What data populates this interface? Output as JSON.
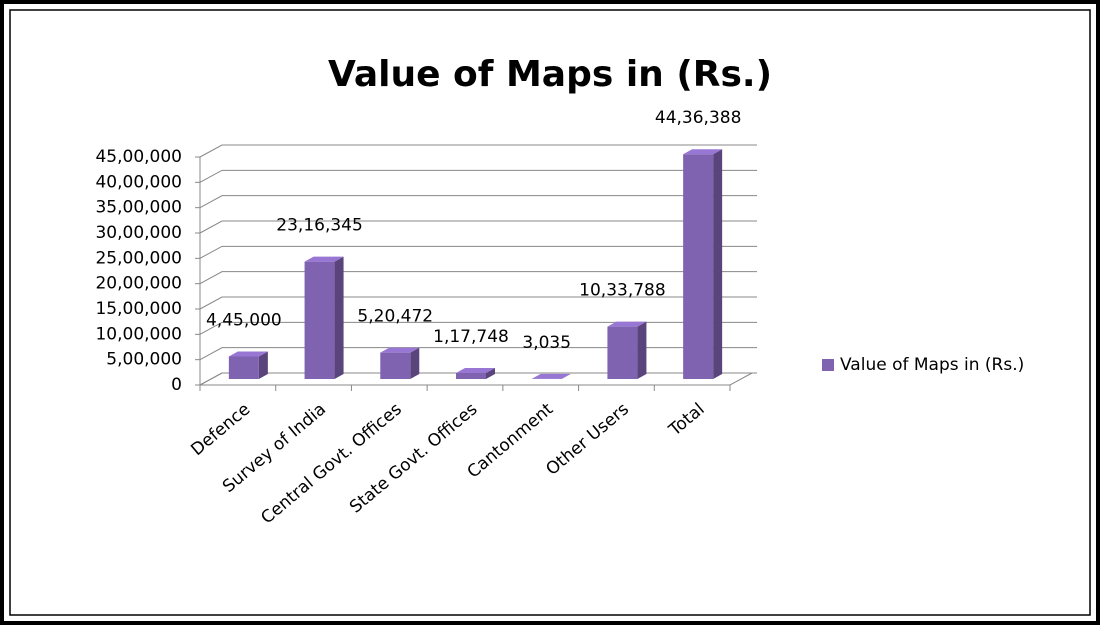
{
  "chart_data": {
    "type": "bar3d",
    "title": "Value of Maps in (Rs.)",
    "categories": [
      "Defence",
      "Survey of India",
      "Central Govt. Offices",
      "State Govt. Offices",
      "Cantonment",
      "Other Users",
      "Total"
    ],
    "series": [
      {
        "name": "Value of Maps in (Rs.)",
        "color": "#7f62b0",
        "values": [
          445000,
          2316345,
          520472,
          117748,
          3035,
          1033788,
          4436388
        ],
        "value_labels": [
          "4,45,000",
          "23,16,345",
          "5,20,472",
          "1,17,748",
          "3,035",
          "10,33,788",
          "44,36,388"
        ]
      }
    ],
    "ylim": [
      0,
      4500000
    ],
    "yticks": [
      0,
      {
        "value": 500000,
        "label": "5,00,000"
      },
      {
        "value": 1000000,
        "label": "10,00,000"
      },
      {
        "value": 1500000,
        "label": "15,00,000"
      },
      {
        "value": 2000000,
        "label": "20,00,000"
      },
      {
        "value": 2500000,
        "label": "25,00,000"
      },
      {
        "value": 3000000,
        "label": "30,00,000"
      },
      {
        "value": 3500000,
        "label": "35,00,000"
      },
      {
        "value": 4000000,
        "label": "40,00,000"
      },
      {
        "value": 4500000,
        "label": "45,00,000"
      }
    ],
    "grid": true,
    "legend": "right"
  }
}
